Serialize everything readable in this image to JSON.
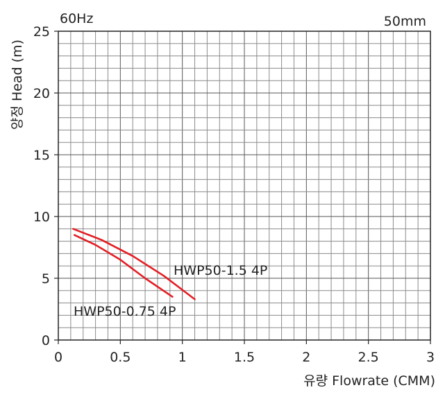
{
  "chart_data": {
    "type": "line",
    "frequency_label": "60Hz",
    "size_label": "50mm",
    "xlabel": "유량 Flowrate (CMM)",
    "ylabel": "양정 Head (m)",
    "xlim": [
      0,
      3
    ],
    "ylim": [
      0,
      25
    ],
    "x_ticks": [
      "0",
      "0.5",
      "1",
      "1.5",
      "2",
      "2.5",
      "3"
    ],
    "y_ticks": [
      "0",
      "5",
      "10",
      "15",
      "20",
      "25"
    ],
    "grid": true,
    "curve_color": "#e31e24",
    "series": [
      {
        "name": "HWP50-1.5 4P",
        "x": [
          0.12,
          0.35,
          0.6,
          0.85,
          1.1
        ],
        "y": [
          9.0,
          8.1,
          6.8,
          5.2,
          3.3
        ]
      },
      {
        "name": "HWP50-0.75 4P",
        "x": [
          0.13,
          0.3,
          0.5,
          0.7,
          0.92
        ],
        "y": [
          8.5,
          7.7,
          6.5,
          5.0,
          3.5
        ]
      }
    ]
  }
}
